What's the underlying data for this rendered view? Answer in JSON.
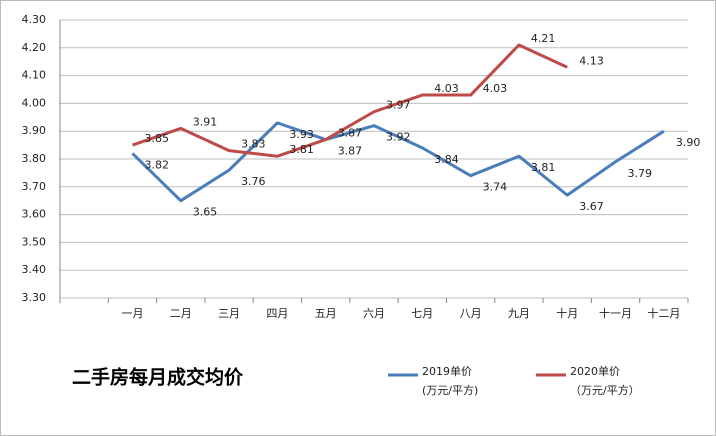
{
  "chart_data": {
    "type": "line",
    "title": "二手房每月成交均价",
    "categories": [
      null,
      "一月",
      "二月",
      "三月",
      "四月",
      "五月",
      "六月",
      "七月",
      "八月",
      "九月",
      "十月",
      "十一月",
      "十二月"
    ],
    "series": [
      {
        "name": "2019单价",
        "unit": "(万元/平方)",
        "color": "#4a7ebb",
        "values": [
          null,
          3.82,
          3.65,
          3.76,
          3.93,
          3.87,
          3.92,
          3.84,
          3.74,
          3.81,
          3.67,
          3.79,
          3.9
        ],
        "value_labels": [
          null,
          "3.82",
          "3.65",
          "3.76",
          "3.93",
          "3.87",
          "3.92",
          "3.84",
          "3.74",
          "3.81",
          "3.67",
          "3.79",
          "3.90"
        ]
      },
      {
        "name": "2020单价",
        "unit": "（万元/平方）",
        "color": "#be4b48",
        "values": [
          null,
          3.85,
          3.91,
          3.83,
          3.81,
          3.87,
          3.97,
          4.03,
          4.03,
          4.21,
          4.13,
          null,
          null
        ],
        "value_labels": [
          null,
          "3.85",
          "3.91",
          "3.83",
          "3.81",
          "3.87",
          "3.97",
          "4.03",
          "4.03",
          "4.21",
          "4.13",
          null,
          null
        ]
      }
    ],
    "ylim": [
      3.3,
      4.3
    ],
    "yticks": [
      {
        "value": 3.3,
        "label": "3.30"
      },
      {
        "value": 3.4,
        "label": "3.40"
      },
      {
        "value": 3.5,
        "label": "3.50"
      },
      {
        "value": 3.6,
        "label": "3.60"
      },
      {
        "value": 3.7,
        "label": "3.70"
      },
      {
        "value": 3.8,
        "label": "3.80"
      },
      {
        "value": 3.9,
        "label": "3.90"
      },
      {
        "value": 4.0,
        "label": "4.00"
      },
      {
        "value": 4.1,
        "label": "4.10"
      },
      {
        "value": 4.2,
        "label": "4.20"
      },
      {
        "value": 4.3,
        "label": "4.30"
      }
    ],
    "grid": true
  }
}
